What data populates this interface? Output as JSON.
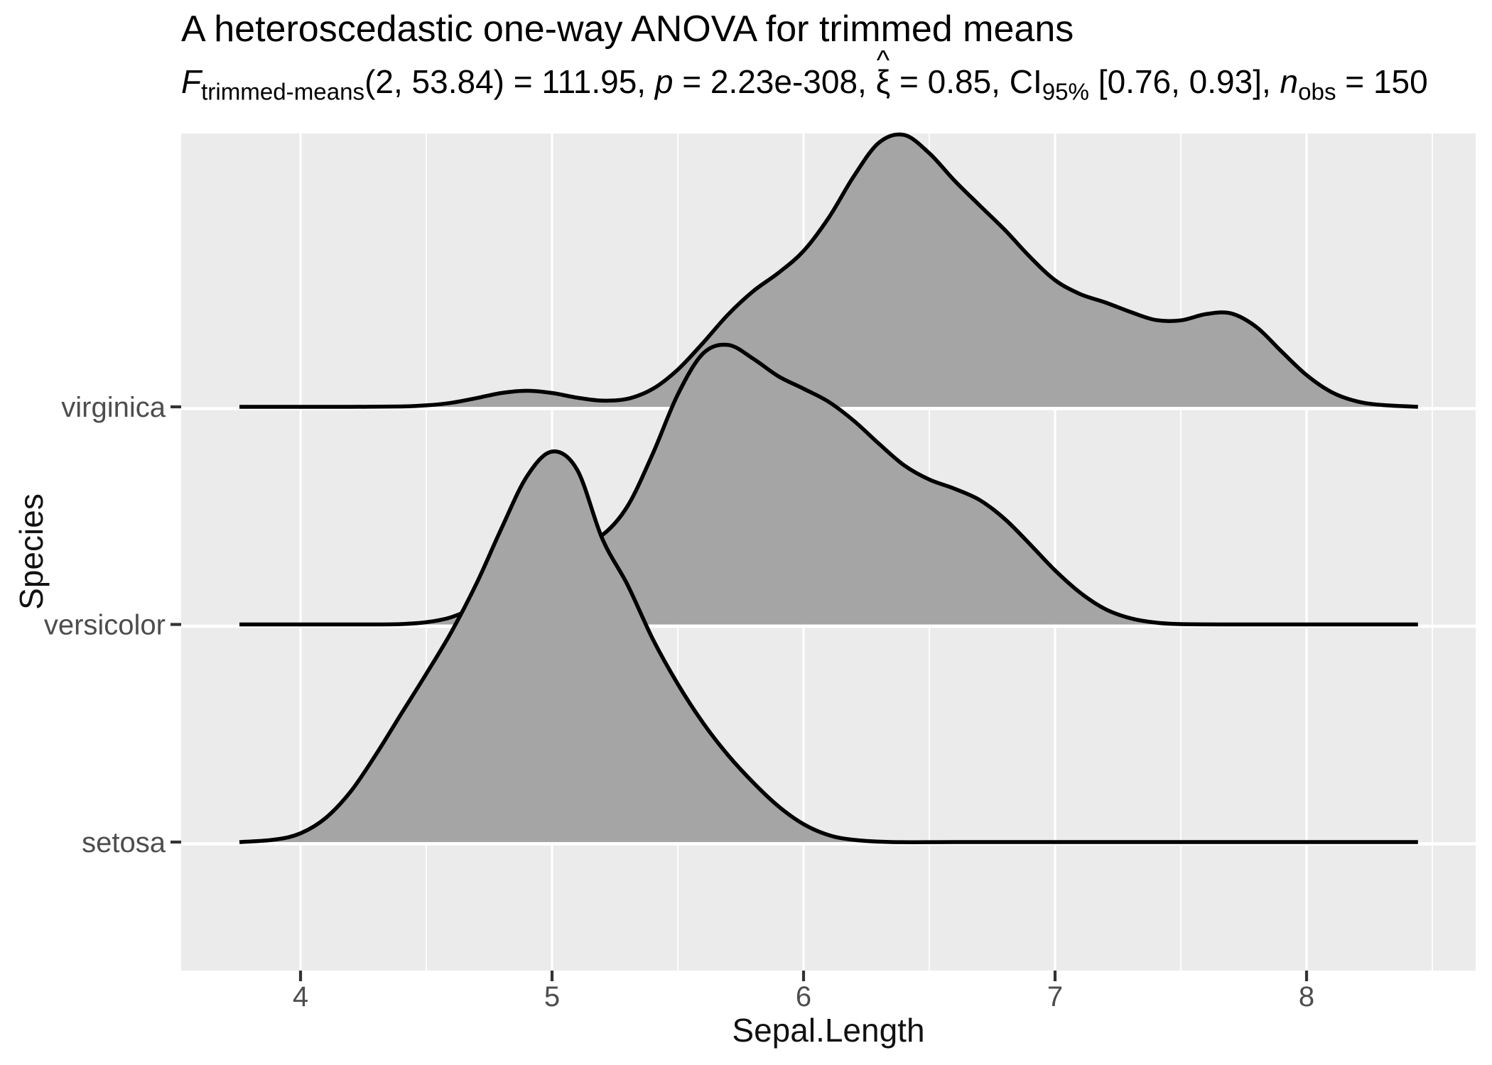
{
  "chart_data": {
    "type": "area",
    "variant": "ridgeline-density",
    "title": "A heteroscedastic one-way ANOVA for trimmed means",
    "subtitle_text": "F trimmed-means(2, 53.84) = 111.95, p = 2.23e-308, xi-hat = 0.85, CI95% [0.76, 0.93], n obs = 150",
    "subtitle_segments": [
      {
        "t": "F",
        "s": "i"
      },
      {
        "t": "trimmed-means",
        "s": "sub"
      },
      {
        "t": "(2, 53.84) = 111.95, "
      },
      {
        "t": "p",
        "s": "i"
      },
      {
        "t": " = 2.23e-308, "
      },
      {
        "t": "ξ",
        "s": "hat"
      },
      {
        "t": " = 0.85, CI"
      },
      {
        "t": "95%",
        "s": "sub"
      },
      {
        "t": " [0.76, 0.93], "
      },
      {
        "t": "n",
        "s": "i"
      },
      {
        "t": "obs",
        "s": "sub"
      },
      {
        "t": " = 150"
      }
    ],
    "xlabel": "Sepal.Length",
    "ylabel": "Species",
    "categories": [
      "setosa",
      "versicolor",
      "virginica"
    ],
    "x_ticks": [
      4,
      5,
      6,
      7,
      8
    ],
    "x_minor_ticks": [
      4.5,
      5.5,
      6.5,
      7.5,
      8.5
    ],
    "xlim": [
      3.52,
      8.67
    ],
    "grid": "on",
    "legend": "none",
    "density_x_range": [
      3.757,
      8.443
    ],
    "series": [
      {
        "name": "setosa",
        "row": 0,
        "points": [
          [
            3.757,
            0
          ],
          [
            3.9,
            0.007
          ],
          [
            4.0,
            0.024
          ],
          [
            4.1,
            0.066
          ],
          [
            4.2,
            0.139
          ],
          [
            4.3,
            0.24
          ],
          [
            4.4,
            0.351
          ],
          [
            4.5,
            0.461
          ],
          [
            4.6,
            0.576
          ],
          [
            4.7,
            0.709
          ],
          [
            4.8,
            0.861
          ],
          [
            4.9,
            1.002
          ],
          [
            5.0,
            1.07
          ],
          [
            5.1,
            1.02
          ],
          [
            5.2,
            0.831
          ],
          [
            5.3,
            0.705
          ],
          [
            5.4,
            0.557
          ],
          [
            5.5,
            0.433
          ],
          [
            5.6,
            0.327
          ],
          [
            5.7,
            0.238
          ],
          [
            5.8,
            0.163
          ],
          [
            5.9,
            0.098
          ],
          [
            6.0,
            0.049
          ],
          [
            6.1,
            0.019
          ],
          [
            6.2,
            0.006
          ],
          [
            6.35,
            0
          ],
          [
            6.6,
            0
          ],
          [
            7.0,
            0
          ],
          [
            7.5,
            0
          ],
          [
            8.0,
            0
          ],
          [
            8.443,
            0
          ]
        ]
      },
      {
        "name": "versicolor",
        "row": 1,
        "points": [
          [
            3.757,
            0
          ],
          [
            4.0,
            0
          ],
          [
            4.2,
            0
          ],
          [
            4.3,
            0
          ],
          [
            4.4,
            0.001
          ],
          [
            4.5,
            0.006
          ],
          [
            4.6,
            0.02
          ],
          [
            4.7,
            0.051
          ],
          [
            4.8,
            0.101
          ],
          [
            4.9,
            0.157
          ],
          [
            5.0,
            0.198
          ],
          [
            5.1,
            0.218
          ],
          [
            5.2,
            0.245
          ],
          [
            5.3,
            0.324
          ],
          [
            5.4,
            0.467
          ],
          [
            5.5,
            0.63
          ],
          [
            5.6,
            0.742
          ],
          [
            5.7,
            0.766
          ],
          [
            5.8,
            0.728
          ],
          [
            5.9,
            0.68
          ],
          [
            6.0,
            0.646
          ],
          [
            6.1,
            0.61
          ],
          [
            6.2,
            0.558
          ],
          [
            6.3,
            0.495
          ],
          [
            6.4,
            0.436
          ],
          [
            6.5,
            0.397
          ],
          [
            6.6,
            0.372
          ],
          [
            6.7,
            0.341
          ],
          [
            6.8,
            0.289
          ],
          [
            6.9,
            0.22
          ],
          [
            7.0,
            0.148
          ],
          [
            7.1,
            0.087
          ],
          [
            7.2,
            0.042
          ],
          [
            7.3,
            0.017
          ],
          [
            7.4,
            0.005
          ],
          [
            7.5,
            0.001
          ],
          [
            7.7,
            0
          ],
          [
            8.0,
            0
          ],
          [
            8.443,
            0
          ]
        ]
      },
      {
        "name": "virginica",
        "row": 2,
        "points": [
          [
            3.757,
            0
          ],
          [
            4.0,
            0
          ],
          [
            4.2,
            0
          ],
          [
            4.4,
            0.001
          ],
          [
            4.5,
            0.004
          ],
          [
            4.6,
            0.011
          ],
          [
            4.7,
            0.024
          ],
          [
            4.8,
            0.038
          ],
          [
            4.9,
            0.044
          ],
          [
            5.0,
            0.038
          ],
          [
            5.1,
            0.025
          ],
          [
            5.2,
            0.017
          ],
          [
            5.3,
            0.022
          ],
          [
            5.4,
            0.049
          ],
          [
            5.5,
            0.102
          ],
          [
            5.6,
            0.175
          ],
          [
            5.7,
            0.253
          ],
          [
            5.8,
            0.317
          ],
          [
            5.9,
            0.367
          ],
          [
            6.0,
            0.427
          ],
          [
            6.1,
            0.518
          ],
          [
            6.2,
            0.632
          ],
          [
            6.3,
            0.724
          ],
          [
            6.4,
            0.745
          ],
          [
            6.5,
            0.695
          ],
          [
            6.6,
            0.62
          ],
          [
            6.7,
            0.552
          ],
          [
            6.8,
            0.485
          ],
          [
            6.9,
            0.411
          ],
          [
            7.0,
            0.347
          ],
          [
            7.1,
            0.309
          ],
          [
            7.2,
            0.286
          ],
          [
            7.3,
            0.26
          ],
          [
            7.4,
            0.238
          ],
          [
            7.5,
            0.237
          ],
          [
            7.6,
            0.254
          ],
          [
            7.7,
            0.256
          ],
          [
            7.8,
            0.219
          ],
          [
            7.9,
            0.152
          ],
          [
            8.0,
            0.087
          ],
          [
            8.1,
            0.04
          ],
          [
            8.2,
            0.015
          ],
          [
            8.3,
            0.005
          ],
          [
            8.443,
            0
          ]
        ]
      }
    ],
    "colors": {
      "panel_background": "#EBEBEB",
      "grid_line": "#FFFFFF",
      "density_fill": "#A5A5A5",
      "density_stroke": "#000000",
      "tick_mark": "#333333",
      "tick_label": "#4D4D4D",
      "axis_title": "#111111",
      "title_text": "#000000"
    }
  }
}
